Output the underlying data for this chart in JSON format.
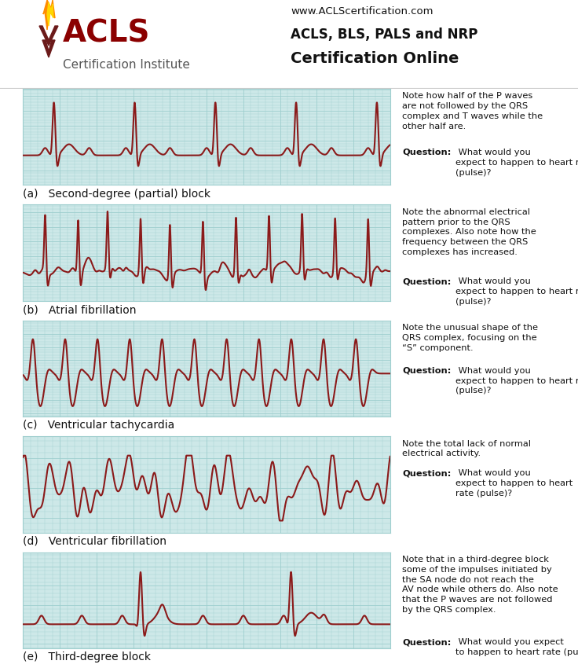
{
  "bg_color": "#cde8e8",
  "ecg_color": "#8B1A1A",
  "grid_major_color": "#9ecece",
  "grid_minor_color": "#b8dede",
  "white_bg": "#ffffff",
  "title_url": "www.ACLScertification.com",
  "title_line2": "ACLS, BLS, PALS and NRP",
  "title_line3": "Certification Online",
  "acls_text_color": "#8B0000",
  "ci_text_color": "#555555",
  "header_text_color": "#111111",
  "labels": [
    "(a)",
    "(b)",
    "(c)",
    "(d)",
    "(e)"
  ],
  "rhythm_names": [
    "Second-degree (partial) block",
    "Atrial fibrillation",
    "Ventricular tachycardia",
    "Ventricular fibrillation",
    "Third-degree block"
  ],
  "note_bodies": [
    "Note how half of the P waves\nare not followed by the QRS\ncomplex and T waves while the\nother half are.",
    "Note the abnormal electrical\npattern prior to the QRS\ncomplexes. Also note how the\nfrequency between the QRS\ncomplexes has increased.",
    "Note the unusual shape of the\nQRS complex, focusing on the\n“S” component.",
    "Note the total lack of normal\nelectrical activity.",
    "Note that in a third-degree block\nsome of the impulses initiated by\nthe SA node do not reach the\nAV node while others do. Also note\nthat the P waves are not followed\nby the QRS complex."
  ],
  "note_questions": [
    "What would you\nexpect to happen to heart rate\n(pulse)?",
    "What would you\nexpect to happen to heart rate\n(pulse)?",
    "What would you\nexpect to happen to heart rate\n(pulse)?",
    "What would you\nexpect to happen to heart\nrate (pulse)?",
    "What would you expect\nto happen to heart rate (pulse)?"
  ],
  "ecg_linewidth": 1.5,
  "flame_color": "#FF8C00",
  "flame_inner_color": "#FFD700",
  "chevron_color": "#6B1A1A"
}
